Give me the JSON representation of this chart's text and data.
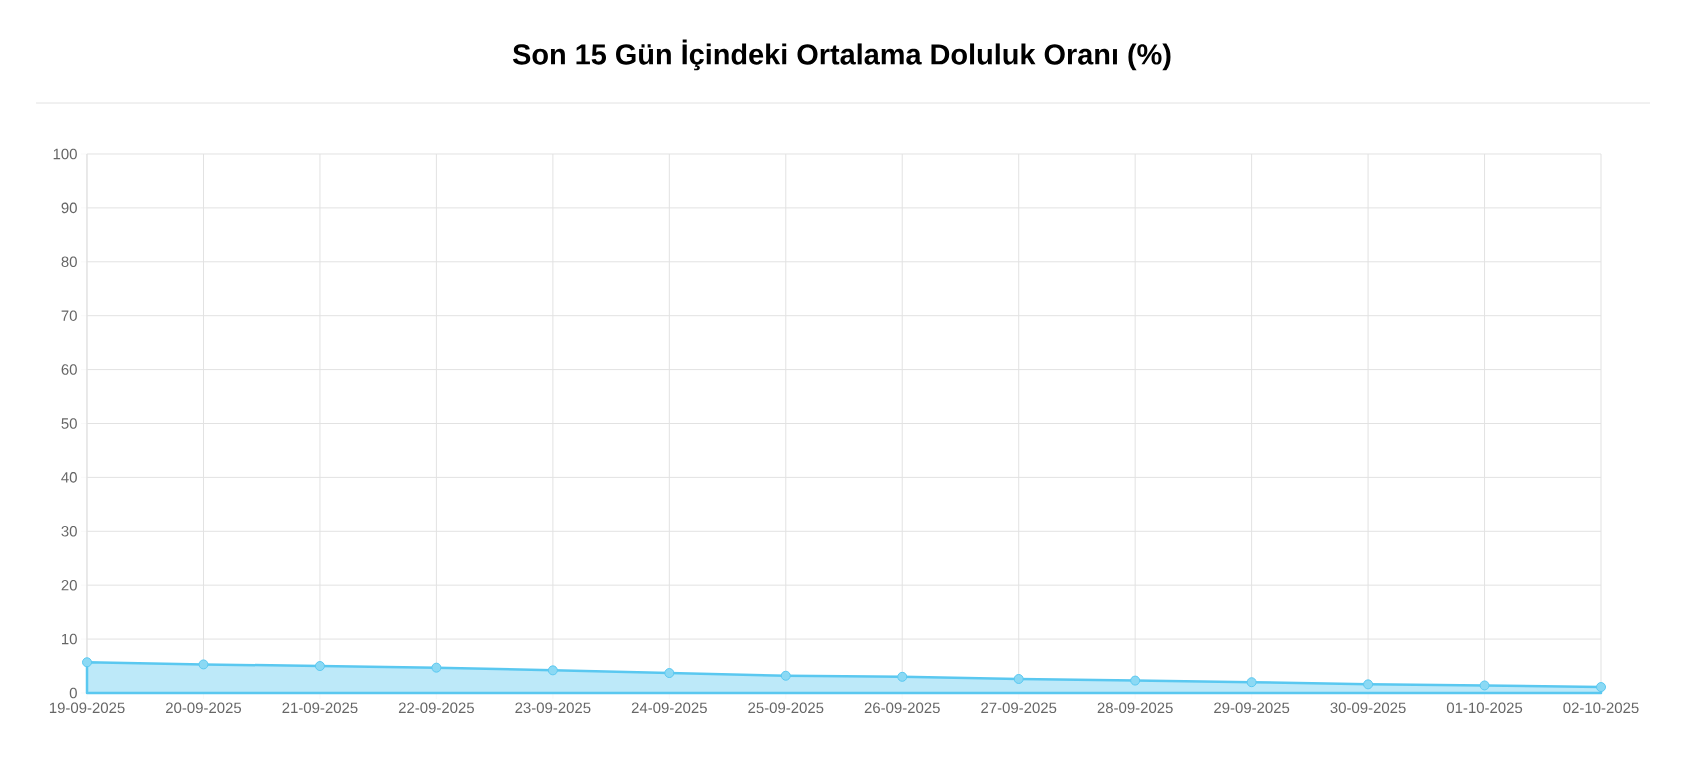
{
  "chart_data": {
    "type": "area",
    "title": "Son 15 Gün İçindeki Ortalama Doluluk Oranı (%)",
    "categories": [
      "19-09-2025",
      "20-09-2025",
      "21-09-2025",
      "22-09-2025",
      "23-09-2025",
      "24-09-2025",
      "25-09-2025",
      "26-09-2025",
      "27-09-2025",
      "28-09-2025",
      "29-09-2025",
      "30-09-2025",
      "01-10-2025",
      "02-10-2025"
    ],
    "series": [
      {
        "color": "#5ac8f0",
        "values": [
          5.7,
          5.3,
          5.0,
          4.7,
          4.2,
          3.7,
          3.2,
          3.0,
          2.6,
          2.3,
          2.0,
          1.6,
          1.4,
          1.1
        ]
      }
    ],
    "ylim": [
      0,
      100
    ],
    "yticks": [
      0,
      10,
      20,
      30,
      40,
      50,
      60,
      70,
      80,
      90,
      100
    ],
    "grid": true,
    "legend": false,
    "marker": "circle",
    "line_style": "solid"
  }
}
